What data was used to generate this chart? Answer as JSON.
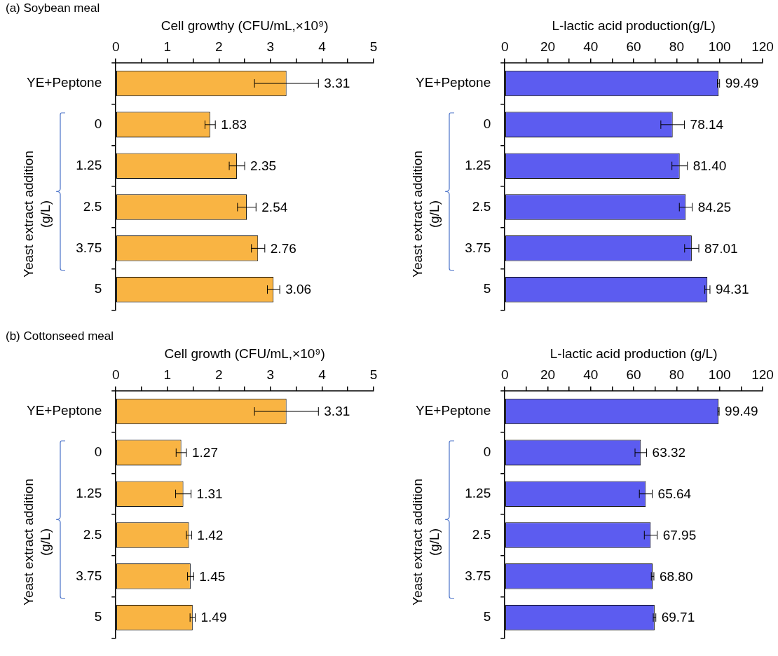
{
  "chart_data": [
    {
      "type": "bar",
      "orientation": "horizontal",
      "title": "(a) Soybean meal",
      "xlabel": "Cell growthy (CFU/mL,×10⁹)",
      "ylabel": "Yeast extract addition (g/L)",
      "categories": [
        "YE+Peptone",
        "0",
        "1.25",
        "2.5",
        "3.75",
        "5"
      ],
      "values": [
        3.31,
        1.83,
        2.35,
        2.54,
        2.76,
        3.06
      ],
      "errors": [
        0.62,
        0.1,
        0.15,
        0.18,
        0.13,
        0.12
      ],
      "color": "#f9b443",
      "xlim": [
        0,
        5
      ],
      "xticks": [
        0,
        {
          "value": 0.5,
          "label": null
        },
        1,
        {
          "value": 1.5,
          "label": null
        },
        2,
        {
          "value": 2.5,
          "label": null
        },
        3,
        {
          "value": 3.5,
          "label": null
        },
        4,
        {
          "value": 4.5,
          "label": null
        },
        5
      ],
      "data_labels": true,
      "grid": false,
      "legend": false
    },
    {
      "type": "bar",
      "orientation": "horizontal",
      "xlabel": "L-lactic acid production(g/L)",
      "ylabel": "Yeast extract addition (g/L)",
      "categories": [
        "YE+Peptone",
        "0",
        "1.25",
        "2.5",
        "3.75",
        "5"
      ],
      "values": [
        99.49,
        78.14,
        81.4,
        84.25,
        87.01,
        94.31
      ],
      "errors": [
        0.5,
        5.5,
        3.6,
        3,
        3.3,
        1.2
      ],
      "color": "#5c5cf0",
      "xlim": [
        0,
        120
      ],
      "xticks": [
        0,
        {
          "value": 10,
          "label": null
        },
        20,
        {
          "value": 30,
          "label": null
        },
        40,
        {
          "value": 50,
          "label": null
        },
        60,
        {
          "value": 70,
          "label": null
        },
        80,
        {
          "value": 90,
          "label": null
        },
        100,
        {
          "value": 110,
          "label": null
        },
        120
      ],
      "value_labels": [
        "99.49",
        "78.14",
        "81.40",
        "84.25",
        "87.01",
        "94.31"
      ],
      "grid": false,
      "legend": false
    },
    {
      "type": "bar",
      "orientation": "horizontal",
      "title": "(b) Cottonseed meal",
      "xlabel": "Cell growth (CFU/mL,×10⁹)",
      "ylabel": "Yeast extract addition (g/L)",
      "categories": [
        "YE+Peptone",
        "0",
        "1.25",
        "2.5",
        "3.75",
        "5"
      ],
      "values": [
        3.31,
        1.27,
        1.31,
        1.42,
        1.45,
        1.49
      ],
      "errors": [
        0.62,
        0.1,
        0.15,
        0.05,
        0.06,
        0.05
      ],
      "color": "#f9b443",
      "xlim": [
        0,
        5
      ],
      "xticks": [
        0,
        {
          "value": 0.5,
          "label": null
        },
        1,
        {
          "value": 1.5,
          "label": null
        },
        2,
        {
          "value": 2.5,
          "label": null
        },
        3,
        {
          "value": 3.5,
          "label": null
        },
        4,
        {
          "value": 4.5,
          "label": null
        },
        5
      ],
      "data_labels": true,
      "grid": false,
      "legend": false
    },
    {
      "type": "bar",
      "orientation": "horizontal",
      "xlabel": "L-lactic acid production (g/L)",
      "ylabel": "Yeast extract addition (g/L)",
      "categories": [
        "YE+Peptone",
        "0",
        "1.25",
        "2.5",
        "3.75",
        "5"
      ],
      "values": [
        99.49,
        63.32,
        65.64,
        67.95,
        68.8,
        69.71
      ],
      "errors": [
        0.3,
        2.7,
        3,
        3,
        0.6,
        0.6
      ],
      "color": "#5c5cf0",
      "xlim": [
        0,
        120
      ],
      "xticks": [
        0,
        {
          "value": 10,
          "label": null
        },
        20,
        {
          "value": 30,
          "label": null
        },
        40,
        {
          "value": 50,
          "label": null
        },
        60,
        {
          "value": 70,
          "label": null
        },
        80,
        {
          "value": 90,
          "label": null
        },
        100,
        {
          "value": 110,
          "label": null
        },
        120
      ],
      "value_labels": [
        "99.49",
        "63.32",
        "65.64",
        "67.95",
        "68.80",
        "69.71"
      ],
      "grid": false,
      "legend": false
    }
  ]
}
